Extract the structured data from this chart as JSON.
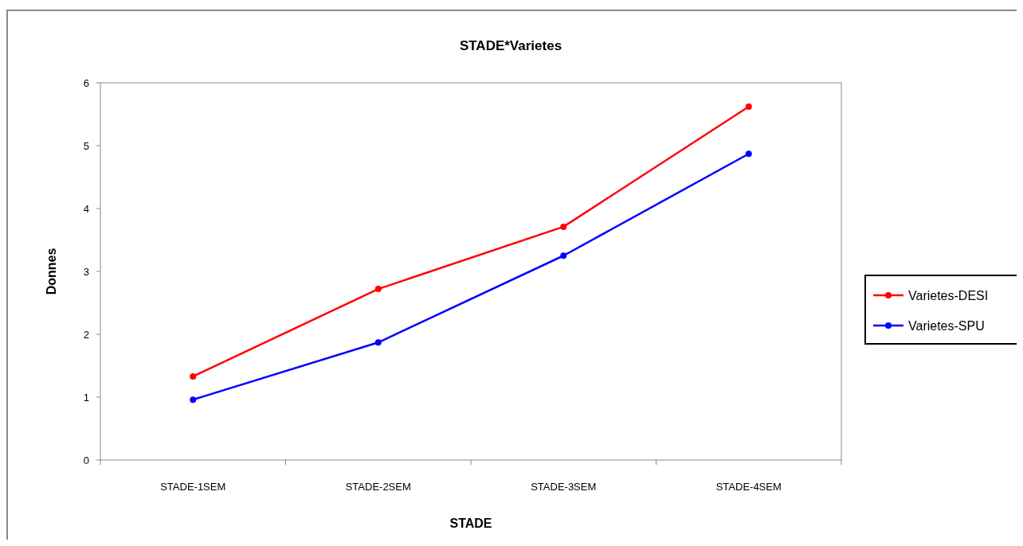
{
  "chart_data": {
    "type": "line",
    "title": "STADE*Varietes",
    "xlabel": "STADE",
    "ylabel": "Donnes",
    "categories": [
      "STADE-1SEM",
      "STADE-2SEM",
      "STADE-3SEM",
      "STADE-4SEM"
    ],
    "series": [
      {
        "name": "Varietes-DESI",
        "color": "#ff0000",
        "values": [
          1.33,
          2.72,
          3.71,
          5.62
        ]
      },
      {
        "name": "Varietes-SPU",
        "color": "#0000ff",
        "values": [
          0.96,
          1.87,
          3.25,
          4.87
        ]
      }
    ],
    "ylim": [
      0,
      6
    ],
    "yticks": [
      0,
      1,
      2,
      3,
      4,
      5,
      6
    ],
    "grid": false,
    "legend": "right",
    "marker": "circle",
    "line_style": "solid"
  }
}
